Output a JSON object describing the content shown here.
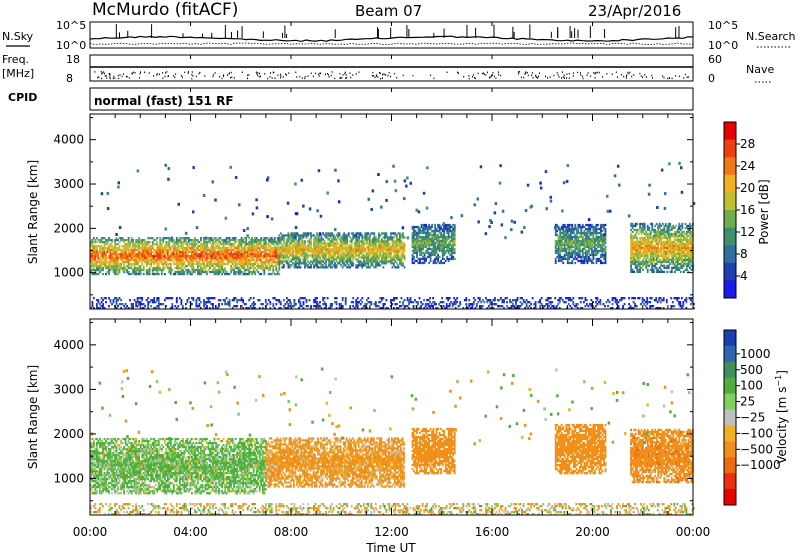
{
  "header": {
    "station": "McMurdo (fitACF)",
    "beam": "Beam 07",
    "date": "23/Apr/2016"
  },
  "summary_panels": {
    "nsky_label": "N.Sky",
    "nsearch_label": "N.Search",
    "noise_tick_top": "10^5",
    "noise_tick_bottom": "10^0",
    "freq_label": "Freq.",
    "freq_unit": "[MHz]",
    "freq_ticks": [
      "18",
      "8"
    ],
    "nave_label": "Nave",
    "nave_ticks": [
      "60",
      "0"
    ],
    "cpid_label": "CPID",
    "cpid_text": "normal (fast) 151 RF"
  },
  "colors": {
    "power_scale": [
      "#1a1aee",
      "#1f3fae",
      "#2f6fa0",
      "#3f8f6f",
      "#6fae4f",
      "#bfbf2f",
      "#f2b21f",
      "#f07818",
      "#ee3f10",
      "#e60000"
    ],
    "velocity_scale": [
      "#1a40b0",
      "#2f66b0",
      "#3f8f5f",
      "#4fae3f",
      "#7fd05f",
      "#bfbfbf",
      "#f2b11f",
      "#f0901a",
      "#ee6a10",
      "#e83010",
      "#e60000"
    ]
  },
  "chart_data": [
    {
      "type": "heatmap",
      "title": "Power",
      "ylabel": "Slant Range [km]",
      "xlabel": "Time UT",
      "x_ticks": [
        "00:00",
        "04:00",
        "08:00",
        "12:00",
        "16:00",
        "20:00",
        "00:00"
      ],
      "x_range_hours": [
        0,
        24
      ],
      "y_ticks": [
        1000,
        2000,
        3000,
        4000
      ],
      "ylim": [
        180,
        4580
      ],
      "colorbar": {
        "label": "Power [dB]",
        "ticks": [
          4,
          8,
          12,
          16,
          20,
          24,
          28
        ],
        "range": [
          0,
          32
        ]
      },
      "echo_regions": [
        {
          "t": [
            0.0,
            7.5
          ],
          "lo": 950,
          "hi": 1800,
          "peak": 26
        },
        {
          "t": [
            7.5,
            12.5
          ],
          "lo": 1100,
          "hi": 1900,
          "peak": 21
        },
        {
          "t": [
            12.8,
            14.5
          ],
          "lo": 1200,
          "hi": 2100,
          "peak": 14
        },
        {
          "t": [
            18.5,
            20.5
          ],
          "lo": 1200,
          "hi": 2100,
          "peak": 14
        },
        {
          "t": [
            21.5,
            24.0
          ],
          "lo": 1000,
          "hi": 2100,
          "peak": 22
        },
        {
          "t": [
            0.0,
            24.0
          ],
          "lo": 180,
          "hi": 420,
          "peak": 6
        }
      ]
    },
    {
      "type": "heatmap",
      "title": "Velocity",
      "ylabel": "Slant Range [km]",
      "xlabel": "Time UT",
      "x_ticks": [
        "00:00",
        "04:00",
        "08:00",
        "12:00",
        "16:00",
        "20:00",
        "00:00"
      ],
      "x_range_hours": [
        0,
        24
      ],
      "y_ticks": [
        1000,
        2000,
        3000,
        4000
      ],
      "ylim": [
        180,
        4580
      ],
      "colorbar": {
        "label": "Velocity [m s^-1]",
        "ticks": [
          1000,
          500,
          100,
          25,
          -25,
          -100,
          -500,
          -1000
        ]
      },
      "echo_regions": [
        {
          "t": [
            0.0,
            7.0
          ],
          "lo": 650,
          "hi": 1900,
          "velocity": 150
        },
        {
          "t": [
            7.0,
            12.5
          ],
          "lo": 800,
          "hi": 1900,
          "velocity": -200
        },
        {
          "t": [
            12.8,
            14.5
          ],
          "lo": 1100,
          "hi": 2100,
          "velocity": -300
        },
        {
          "t": [
            18.5,
            20.5
          ],
          "lo": 1100,
          "hi": 2200,
          "velocity": -300
        },
        {
          "t": [
            21.5,
            24.0
          ],
          "lo": 900,
          "hi": 2100,
          "velocity": -350
        },
        {
          "t": [
            0.0,
            24.0
          ],
          "lo": 180,
          "hi": 450,
          "velocity": -50
        }
      ]
    }
  ]
}
